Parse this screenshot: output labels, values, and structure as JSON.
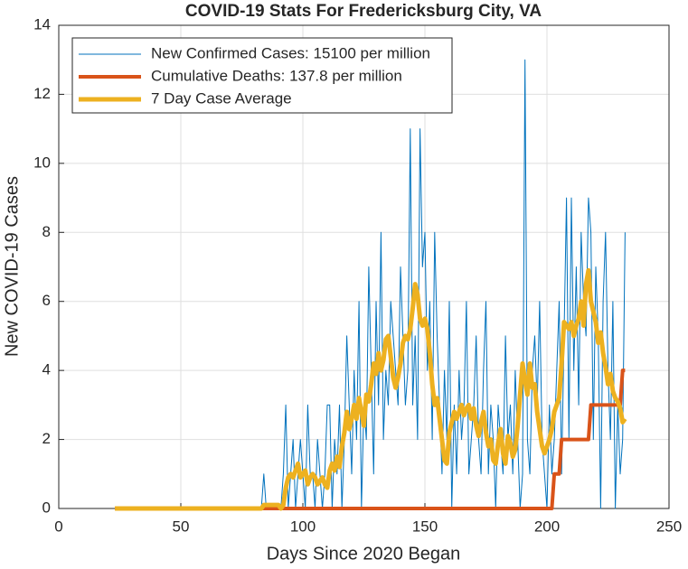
{
  "chart_data": {
    "type": "line",
    "title": "COVID-19 Stats For Fredericksburg City, VA",
    "xlabel": "Days Since 2020 Began",
    "ylabel": "New COVID-19 Cases",
    "xlim": [
      0,
      250
    ],
    "xticks": [
      0,
      50,
      100,
      150,
      200,
      250
    ],
    "ylim": [
      0,
      14
    ],
    "yticks": [
      0,
      2,
      4,
      6,
      8,
      10,
      12,
      14
    ],
    "grid": true,
    "legend": "top-left",
    "x": [
      23,
      24,
      25,
      26,
      27,
      28,
      29,
      30,
      31,
      32,
      33,
      34,
      35,
      36,
      37,
      38,
      39,
      40,
      41,
      42,
      43,
      44,
      45,
      46,
      47,
      48,
      49,
      50,
      51,
      52,
      53,
      54,
      55,
      56,
      57,
      58,
      59,
      60,
      61,
      62,
      63,
      64,
      65,
      66,
      67,
      68,
      69,
      70,
      71,
      72,
      73,
      74,
      75,
      76,
      77,
      78,
      79,
      80,
      81,
      82,
      83,
      84,
      85,
      86,
      87,
      88,
      89,
      90,
      91,
      92,
      93,
      94,
      95,
      96,
      97,
      98,
      99,
      100,
      101,
      102,
      103,
      104,
      105,
      106,
      107,
      108,
      109,
      110,
      111,
      112,
      113,
      114,
      115,
      116,
      117,
      118,
      119,
      120,
      121,
      122,
      123,
      124,
      125,
      126,
      127,
      128,
      129,
      130,
      131,
      132,
      133,
      134,
      135,
      136,
      137,
      138,
      139,
      140,
      141,
      142,
      143,
      144,
      145,
      146,
      147,
      148,
      149,
      150,
      151,
      152,
      153,
      154,
      155,
      156,
      157,
      158,
      159,
      160,
      161,
      162,
      163,
      164,
      165,
      166,
      167,
      168,
      169,
      170,
      171,
      172,
      173,
      174,
      175,
      176,
      177,
      178,
      179,
      180,
      181,
      182,
      183,
      184,
      185,
      186,
      187,
      188,
      189,
      190,
      191,
      192,
      193,
      194,
      195,
      196,
      197,
      198,
      199,
      200,
      201,
      202,
      203,
      204,
      205,
      206,
      207,
      208,
      209,
      210,
      211,
      212,
      213,
      214,
      215,
      216,
      217,
      218,
      219,
      220,
      221,
      222,
      223,
      224,
      225,
      226,
      227,
      228,
      229,
      230,
      231,
      232
    ],
    "series": [
      {
        "name": "New Confirmed Cases: 15100 per million",
        "color": "#0072BD",
        "width": 1,
        "values": [
          0,
          0,
          0,
          0,
          0,
          0,
          0,
          0,
          0,
          0,
          0,
          0,
          0,
          0,
          0,
          0,
          0,
          0,
          0,
          0,
          0,
          0,
          0,
          0,
          0,
          0,
          0,
          0,
          0,
          0,
          0,
          0,
          0,
          0,
          0,
          0,
          0,
          0,
          0,
          0,
          0,
          0,
          0,
          0,
          0,
          0,
          0,
          0,
          0,
          0,
          0,
          0,
          0,
          0,
          0,
          0,
          0,
          0,
          0,
          0,
          0,
          1,
          0,
          0,
          0,
          0,
          0,
          0,
          0,
          1,
          3,
          0,
          1,
          2,
          0,
          1,
          2,
          1,
          0,
          3,
          1,
          1,
          0,
          2,
          1,
          0,
          1,
          3,
          3,
          0,
          2,
          1,
          3,
          0,
          2,
          5,
          3,
          1,
          4,
          2,
          6,
          0,
          3,
          2,
          7,
          4,
          1,
          6,
          3,
          8,
          2,
          4,
          3,
          6,
          5,
          4,
          3,
          7,
          5,
          3,
          4,
          11,
          3,
          5,
          2,
          11,
          7,
          8,
          4,
          6,
          2,
          8,
          5,
          3,
          1,
          4,
          2,
          6,
          0,
          3,
          1,
          4,
          2,
          3,
          6,
          1,
          2,
          3,
          5,
          2,
          1,
          4,
          6,
          1,
          3,
          2,
          0,
          3,
          2,
          1,
          5,
          2,
          3,
          1,
          4,
          2,
          0,
          1,
          13,
          2,
          1,
          4,
          5,
          3,
          6,
          2,
          1,
          0,
          3,
          1,
          2,
          4,
          6,
          1,
          5,
          9,
          2,
          9,
          4,
          7,
          3,
          8,
          6,
          5,
          9,
          8,
          2,
          7,
          5,
          0,
          6,
          8,
          4,
          2,
          6,
          0,
          3,
          1,
          2,
          8
        ]
      },
      {
        "name": "Cumulative Deaths: 137.8 per million",
        "color": "#D95319",
        "width": 4,
        "values": [
          0,
          0,
          0,
          0,
          0,
          0,
          0,
          0,
          0,
          0,
          0,
          0,
          0,
          0,
          0,
          0,
          0,
          0,
          0,
          0,
          0,
          0,
          0,
          0,
          0,
          0,
          0,
          0,
          0,
          0,
          0,
          0,
          0,
          0,
          0,
          0,
          0,
          0,
          0,
          0,
          0,
          0,
          0,
          0,
          0,
          0,
          0,
          0,
          0,
          0,
          0,
          0,
          0,
          0,
          0,
          0,
          0,
          0,
          0,
          0,
          0,
          0,
          0,
          0,
          0,
          0,
          0,
          0,
          0,
          0,
          0,
          0,
          0,
          0,
          0,
          0,
          0,
          0,
          0,
          0,
          0,
          0,
          0,
          0,
          0,
          0,
          0,
          0,
          0,
          0,
          0,
          0,
          0,
          0,
          0,
          0,
          0,
          0,
          0,
          0,
          0,
          0,
          0,
          0,
          0,
          0,
          0,
          0,
          0,
          0,
          0,
          0,
          0,
          0,
          0,
          0,
          0,
          0,
          0,
          0,
          0,
          0,
          0,
          0,
          0,
          0,
          0,
          0,
          0,
          0,
          0,
          0,
          0,
          0,
          0,
          0,
          0,
          0,
          0,
          0,
          0,
          0,
          0,
          0,
          0,
          0,
          0,
          0,
          0,
          0,
          0,
          0,
          0,
          0,
          0,
          0,
          0,
          0,
          0,
          0,
          0,
          0,
          0,
          0,
          0,
          0,
          0,
          0,
          0,
          0,
          0,
          0,
          0,
          0,
          0,
          0,
          0,
          0,
          0,
          0,
          1,
          1,
          1,
          2,
          2,
          2,
          2,
          2,
          2,
          2,
          2,
          2,
          2,
          2,
          2,
          3,
          3,
          3,
          3,
          3,
          3,
          3,
          3,
          3,
          3,
          3,
          3,
          3,
          4,
          4
        ]
      },
      {
        "name": "7 Day Case Average",
        "color": "#EDB120",
        "width": 5,
        "values": [
          0,
          0,
          0,
          0,
          0,
          0,
          0,
          0,
          0,
          0,
          0,
          0,
          0,
          0,
          0,
          0,
          0,
          0,
          0,
          0,
          0,
          0,
          0,
          0,
          0,
          0,
          0,
          0,
          0,
          0,
          0,
          0,
          0,
          0,
          0,
          0,
          0,
          0,
          0,
          0,
          0,
          0,
          0,
          0,
          0,
          0,
          0,
          0,
          0,
          0,
          0,
          0,
          0,
          0,
          0,
          0,
          0,
          0,
          0,
          0,
          0,
          0.1,
          0.1,
          0.1,
          0.1,
          0.1,
          0.1,
          0.1,
          0,
          0.1,
          0.6,
          0.9,
          1,
          0.9,
          1.1,
          1.3,
          0.9,
          1,
          1.1,
          0.7,
          0.9,
          1,
          0.9,
          0.7,
          0.8,
          0.9,
          0.7,
          0.6,
          1.1,
          1.3,
          1.1,
          1.5,
          1.2,
          1.8,
          2.2,
          2.8,
          2.3,
          2.6,
          3,
          2.6,
          3.2,
          2.8,
          2.4,
          3.3,
          3.1,
          3.6,
          4.2,
          3.9,
          4.5,
          4,
          4.3,
          4.9,
          5,
          4.4,
          3.8,
          3.5,
          3.8,
          4.2,
          4.8,
          5,
          4.9,
          5.2,
          5.8,
          6.5,
          6.2,
          5.5,
          5.3,
          5.5,
          5.2,
          4.5,
          3.6,
          3,
          3.2,
          2.6,
          2,
          1.4,
          1.3,
          2.2,
          2.5,
          2.8,
          2.6,
          2.8,
          3,
          2.7,
          2.9,
          3,
          2.6,
          2.9,
          2.4,
          2.1,
          2.5,
          2.8,
          2.2,
          1.8,
          2,
          1.4,
          1.3,
          1.9,
          2.3,
          1.6,
          1.3,
          2.1,
          1.9,
          1.5,
          1.7,
          2.4,
          3.3,
          4.2,
          3.7,
          3.3,
          4.2,
          3.5,
          3.6,
          2.8,
          2.3,
          1.8,
          1.6,
          1.8,
          2,
          2.3,
          2.8,
          3,
          3.2,
          4.2,
          5.4,
          5.3,
          5.2,
          5.4,
          5,
          5.3,
          5.5,
          6,
          5.3,
          6.5,
          6.9,
          6,
          5.7,
          5.4,
          4.8,
          5.1,
          4.5,
          4.1,
          3.6,
          3.9,
          3.4,
          3.2,
          3.1,
          2.9,
          2.5,
          2.6
        ]
      }
    ]
  }
}
